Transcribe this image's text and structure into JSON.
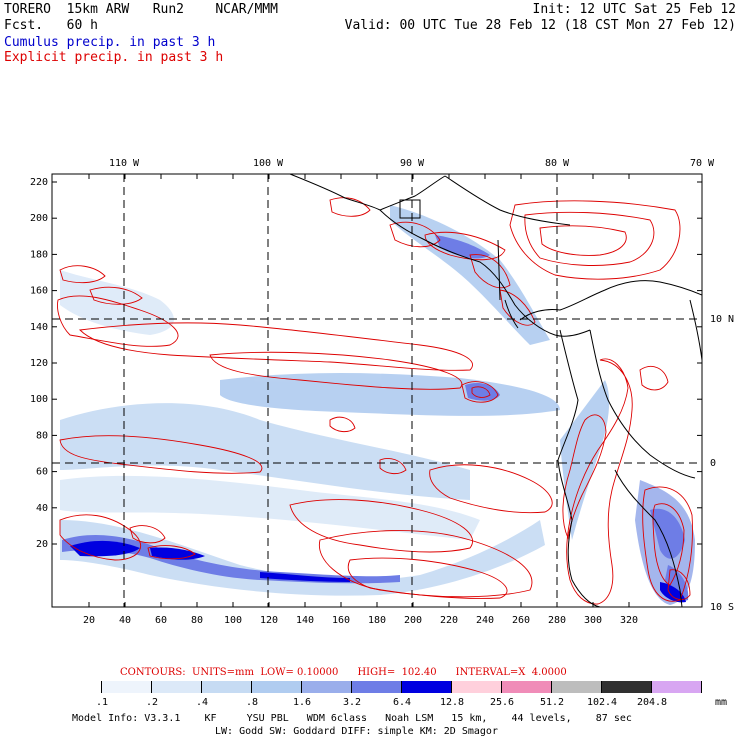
{
  "header": {
    "left_line1": "TORERO  15km ARW   Run2    NCAR/MMM",
    "left_line2": "Fcst.   60 h",
    "right_line1": "Init: 12 UTC Sat 25 Feb 12",
    "right_line2": "Valid: 00 UTC Tue 28 Feb 12 (18 CST Mon 27 Feb 12)",
    "legend_cumulus": "Cumulus precip. in past 3 h",
    "legend_explicit": "Explicit precip. in past 3 h",
    "colors": {
      "cumulus": "#0000cc",
      "explicit": "#dd0000"
    }
  },
  "map": {
    "lon_labels": [
      "110 W",
      "100 W",
      "90 W",
      "80 W",
      "70 W"
    ],
    "lat_labels": [
      "10 N",
      "0",
      "10 S"
    ],
    "y_ticks": [
      "220",
      "200",
      "180",
      "160",
      "140",
      "120",
      "100",
      "80",
      "60",
      "40",
      "20"
    ],
    "x_ticks": [
      "20",
      "40",
      "60",
      "80",
      "100",
      "120",
      "140",
      "160",
      "180",
      "200",
      "220",
      "240",
      "260",
      "280",
      "300",
      "320"
    ]
  },
  "contour_info": {
    "label": "CONTOURS:  UNITS=mm  LOW= 0.10000      HIGH=  102.40      INTERVAL=X  4.0000"
  },
  "colorbar": {
    "units": "mm",
    "levels": [
      ".1",
      ".2",
      ".4",
      ".8",
      "1.6",
      "3.2",
      "6.4",
      "12.8",
      "25.6",
      "51.2",
      "102.4",
      "204.8"
    ],
    "colors": [
      "#ffffff",
      "#eef4fc",
      "#dce9f8",
      "#c6dbf3",
      "#b0ccf0",
      "#9aaeeb",
      "#6e7de6",
      "#0000e0",
      "#ffd0dc",
      "#f08cb8",
      "#bdbdbd",
      "#303030",
      "#d8a6f2"
    ]
  },
  "footer": {
    "line1": "Model Info: V3.3.1    KF     YSU PBL   WDM 6class   Noah LSM   15 km,    44 levels,    87 sec",
    "line2": "LW: Godd SW: Goddard DIFF: simple KM: 2D Smagor"
  }
}
